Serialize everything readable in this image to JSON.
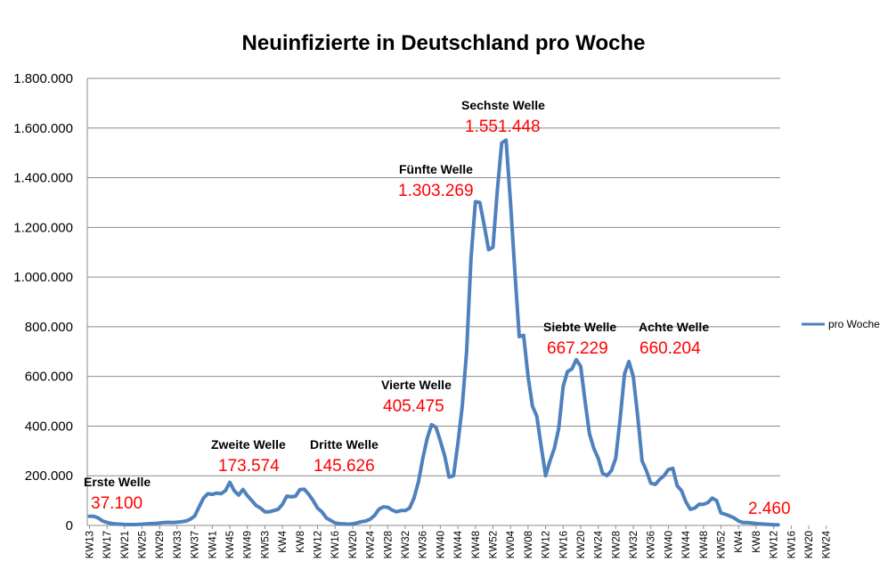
{
  "chart_data": {
    "type": "line",
    "title": "Neuinfizierte in Deutschland pro Woche",
    "xlabel": "",
    "ylabel": "",
    "ylim": [
      0,
      1800000
    ],
    "y_ticks": [
      "0",
      "200.000",
      "400.000",
      "600.000",
      "800.000",
      "1.000.000",
      "1.200.000",
      "1.400.000",
      "1.600.000",
      "1.800.000"
    ],
    "grid": true,
    "legend_position": "right",
    "color": "#4f81bd",
    "x_tick_labels": [
      "KW13",
      "KW17",
      "KW21",
      "KW25",
      "KW29",
      "KW33",
      "KW37",
      "KW41",
      "KW45",
      "KW49",
      "KW53",
      "KW4",
      "KW8",
      "KW12",
      "KW16",
      "KW20",
      "KW24",
      "KW28",
      "KW32",
      "KW36",
      "KW40",
      "KW44",
      "KW48",
      "KW52",
      "KW04",
      "KW08",
      "KW12",
      "KW16",
      "KW20",
      "KW24",
      "KW28",
      "KW32",
      "KW36",
      "KW40",
      "KW44",
      "KW48",
      "KW52",
      "KW4",
      "KW8",
      "KW12",
      "KW16",
      "KW20",
      "KW24"
    ],
    "series": [
      {
        "name": "pro Woche",
        "values": [
          37100,
          37100,
          30000,
          18000,
          12000,
          8000,
          6000,
          5000,
          4000,
          3500,
          3500,
          4000,
          5000,
          6000,
          7000,
          8000,
          10000,
          12000,
          12500,
          12000,
          13000,
          15000,
          18000,
          25000,
          38000,
          75000,
          110000,
          128000,
          125000,
          130000,
          128000,
          140000,
          173574,
          140000,
          122000,
          145000,
          120000,
          100000,
          80000,
          70000,
          55000,
          55000,
          60000,
          65000,
          85000,
          118000,
          115000,
          118000,
          145000,
          145626,
          125000,
          100000,
          70000,
          55000,
          30000,
          20000,
          10000,
          7000,
          6000,
          5000,
          6000,
          10000,
          15000,
          18000,
          25000,
          40000,
          65000,
          75000,
          73000,
          62000,
          55000,
          60000,
          60000,
          70000,
          110000,
          175000,
          270000,
          350000,
          405475,
          395000,
          340000,
          280000,
          195000,
          200000,
          330000,
          480000,
          700000,
          1080000,
          1303269,
          1300000,
          1210000,
          1110000,
          1120000,
          1350000,
          1540000,
          1551448,
          1300000,
          1020000,
          760000,
          765000,
          600000,
          480000,
          440000,
          320000,
          200000,
          260000,
          310000,
          390000,
          560000,
          620000,
          630000,
          667229,
          640000,
          500000,
          370000,
          310000,
          270000,
          210000,
          200000,
          220000,
          270000,
          430000,
          610000,
          660204,
          600000,
          440000,
          260000,
          220000,
          170000,
          165000,
          185000,
          200000,
          225000,
          230000,
          160000,
          140000,
          95000,
          65000,
          70000,
          85000,
          85000,
          92000,
          110000,
          100000,
          50000,
          45000,
          38000,
          30000,
          18000,
          12000,
          12000,
          10000,
          8000,
          6000,
          5000,
          4000,
          3000,
          2460
        ]
      }
    ],
    "annotations": [
      {
        "label": "Erste Welle",
        "value": "37.100"
      },
      {
        "label": "Zweite Welle",
        "value": "173.574"
      },
      {
        "label": "Dritte Welle",
        "value": "145.626"
      },
      {
        "label": "Vierte Welle",
        "value": "405.475"
      },
      {
        "label": "Fünfte Welle",
        "value": "1.303.269"
      },
      {
        "label": "Sechste Welle",
        "value": "1.551.448"
      },
      {
        "label": "Siebte Welle",
        "value": "667.229"
      },
      {
        "label": "Achte Welle",
        "value": "660.204"
      },
      {
        "label": "",
        "value": "2.460"
      }
    ]
  }
}
